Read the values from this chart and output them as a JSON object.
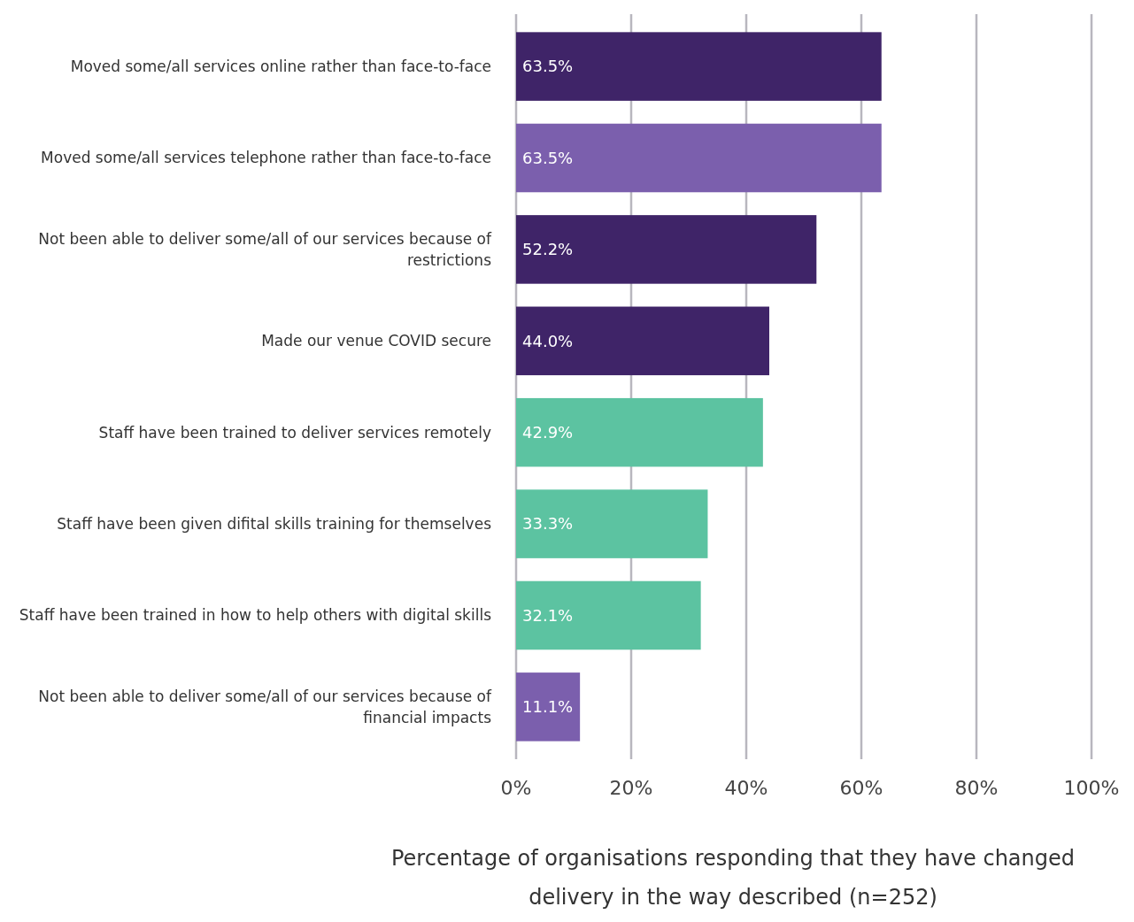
{
  "chart_data": {
    "type": "bar",
    "orientation": "horizontal",
    "xlabel": "Percentage of organisations responding that they have changed delivery in the way described (n=252)",
    "categories": [
      "Moved some/all services online rather than face-to-face",
      "Moved some/all services telephone rather than face-to-face",
      "Not been able to deliver some/all of our services because of restrictions",
      "Made our venue COVID secure",
      "Staff have been trained to deliver services remotely",
      "Staff have been given difital skills training for themselves",
      "Staff have been trained in how to help others with digital skills",
      "Not been able to deliver some/all of our services because of financial impacts"
    ],
    "values": [
      63.5,
      63.5,
      52.2,
      44.0,
      42.9,
      33.3,
      32.1,
      11.1
    ],
    "value_labels": [
      "63.5%",
      "63.5%",
      "52.2%",
      "44.0%",
      "42.9%",
      "33.3%",
      "32.1%",
      "11.1%"
    ],
    "colors": [
      "#3f2468",
      "#7b5fad",
      "#3f2468",
      "#3f2468",
      "#5cc3a1",
      "#5cc3a1",
      "#5cc3a1",
      "#7b5fad"
    ],
    "xlim": [
      0,
      100
    ],
    "xticks": [
      {
        "value": 0,
        "label": "0%"
      },
      {
        "value": 20,
        "label": "20%"
      },
      {
        "value": 40,
        "label": "40%"
      },
      {
        "value": 60,
        "label": "60%"
      },
      {
        "value": 80,
        "label": "80%"
      },
      {
        "value": 100,
        "label": "100%"
      }
    ],
    "grid": "x"
  }
}
